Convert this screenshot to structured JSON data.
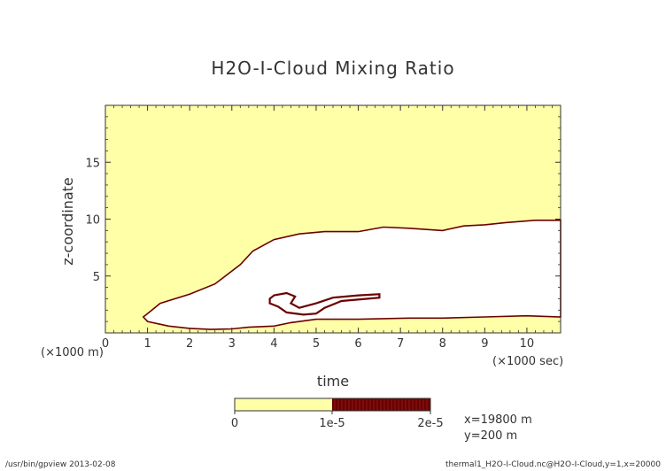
{
  "chart_data": {
    "type": "heatmap",
    "title": "H2O-I-Cloud Mixing Ratio",
    "xlabel": "time",
    "ylabel": "z-coordinate",
    "x_unit_note": "(×1000 sec)",
    "y_unit_note": "(×1000 m)",
    "xlim": [
      0,
      10.8
    ],
    "ylim": [
      0,
      20
    ],
    "x_ticks": [
      0,
      1,
      2,
      3,
      4,
      5,
      6,
      7,
      8,
      9,
      10
    ],
    "y_ticks": [
      5,
      10,
      15
    ],
    "colorbar": {
      "levels": [
        0,
        1e-05,
        2e-05
      ],
      "labels": [
        "0",
        "1e-5",
        "2e-5"
      ],
      "colors": [
        "#ffffa8",
        "#6b0000"
      ]
    },
    "region_boundary": {
      "description_key": "cloud envelope (x in ×1000 s, z in ×1000 m)",
      "upper": [
        [
          0.9,
          1.4
        ],
        [
          1.0,
          1.7
        ],
        [
          1.3,
          2.6
        ],
        [
          2.0,
          3.4
        ],
        [
          2.6,
          4.3
        ],
        [
          3.2,
          6.0
        ],
        [
          3.5,
          7.2
        ],
        [
          4.0,
          8.2
        ],
        [
          4.6,
          8.7
        ],
        [
          5.2,
          8.9
        ],
        [
          6.0,
          8.9
        ],
        [
          6.6,
          9.3
        ],
        [
          7.2,
          9.2
        ],
        [
          8.0,
          9.0
        ],
        [
          8.5,
          9.4
        ],
        [
          9.0,
          9.5
        ],
        [
          9.5,
          9.7
        ],
        [
          10.2,
          9.9
        ],
        [
          10.8,
          9.9
        ]
      ],
      "lower": [
        [
          10.8,
          1.4
        ],
        [
          10.0,
          1.5
        ],
        [
          9.0,
          1.4
        ],
        [
          8.0,
          1.3
        ],
        [
          7.2,
          1.3
        ],
        [
          6.0,
          1.2
        ],
        [
          5.0,
          1.2
        ],
        [
          4.4,
          0.9
        ],
        [
          4.0,
          0.6
        ],
        [
          3.4,
          0.5
        ],
        [
          3.0,
          0.35
        ],
        [
          2.5,
          0.3
        ],
        [
          2.0,
          0.4
        ],
        [
          1.5,
          0.6
        ],
        [
          1.0,
          1.0
        ],
        [
          0.9,
          1.4
        ]
      ]
    }
  },
  "info": {
    "pos_x": "x=19800 m",
    "pos_y": "y=200 m"
  },
  "footer": {
    "left": "/usr/bin/gpview  2013-02-08",
    "right": "thermal1_H2O-I-Cloud.nc@H2O-I-Cloud,y=1,x=20000"
  }
}
